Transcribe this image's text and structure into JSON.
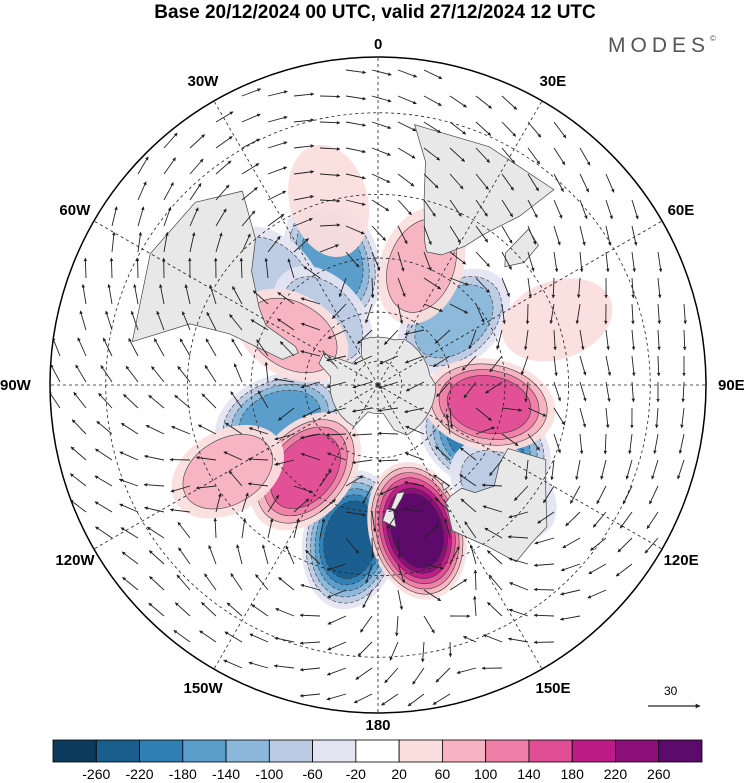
{
  "header": {
    "title": "Base 20/12/2024 00 UTC, valid 27/12/2024 12 UTC",
    "brand": "MODES",
    "brand_mark": "©"
  },
  "map": {
    "projection": "south-polar-stereographic",
    "longitude_labels": [
      {
        "text": "0",
        "lon": 0
      },
      {
        "text": "30E",
        "lon": 30
      },
      {
        "text": "60E",
        "lon": 60
      },
      {
        "text": "90E",
        "lon": 90
      },
      {
        "text": "120E",
        "lon": 120
      },
      {
        "text": "150E",
        "lon": 150
      },
      {
        "text": "180",
        "lon": 180
      },
      {
        "text": "150W",
        "lon": -150
      },
      {
        "text": "120W",
        "lon": -120
      },
      {
        "text": "90W",
        "lon": -90
      },
      {
        "text": "60W",
        "lon": -60
      },
      {
        "text": "30W",
        "lon": -30
      }
    ],
    "land_color": "#e8e8e8",
    "coast_color": "#444444",
    "anomaly_centers": [
      {
        "sign": "negative",
        "level": -140,
        "lon": -20,
        "lat": -38
      },
      {
        "sign": "negative",
        "level": -60,
        "lon": -45,
        "lat": -32
      },
      {
        "sign": "negative",
        "level": -60,
        "lon": -40,
        "lat": -55
      },
      {
        "sign": "negative",
        "level": -100,
        "lon": 50,
        "lat": -50
      },
      {
        "sign": "negative",
        "level": -140,
        "lon": -110,
        "lat": -48
      },
      {
        "sign": "negative",
        "level": -180,
        "lon": 118,
        "lat": -42
      },
      {
        "sign": "negative",
        "level": -220,
        "lon": -170,
        "lat": -30
      },
      {
        "sign": "negative",
        "level": -60,
        "lon": 130,
        "lat": -28
      },
      {
        "sign": "positive",
        "level": 60,
        "lon": 20,
        "lat": -40
      },
      {
        "sign": "positive",
        "level": 20,
        "lon": -15,
        "lat": -20
      },
      {
        "sign": "positive",
        "level": 60,
        "lon": -60,
        "lat": -50
      },
      {
        "sign": "positive",
        "level": 20,
        "lon": 70,
        "lat": -20
      },
      {
        "sign": "positive",
        "level": 140,
        "lon": 100,
        "lat": -45
      },
      {
        "sign": "positive",
        "level": 140,
        "lon": -140,
        "lat": -45
      },
      {
        "sign": "positive",
        "level": 260,
        "lon": 165,
        "lat": -32
      },
      {
        "sign": "positive",
        "level": 60,
        "lon": -120,
        "lat": -25
      }
    ]
  },
  "vector_reference": {
    "value": "30"
  },
  "colorbar": {
    "colors": [
      "#0d3b5e",
      "#1a5e8e",
      "#2f7fb5",
      "#5a9dcb",
      "#8bb8da",
      "#bccbe4",
      "#e4e4f2",
      "#ffffff",
      "#fbdede",
      "#f7b3c1",
      "#f07fa8",
      "#e24e96",
      "#bd1c88",
      "#8c0f7a",
      "#5c0a6b"
    ],
    "labels": [
      "-260",
      "-220",
      "-180",
      "-140",
      "-100",
      "-60",
      "-20",
      "20",
      "60",
      "100",
      "140",
      "180",
      "220",
      "260"
    ]
  }
}
